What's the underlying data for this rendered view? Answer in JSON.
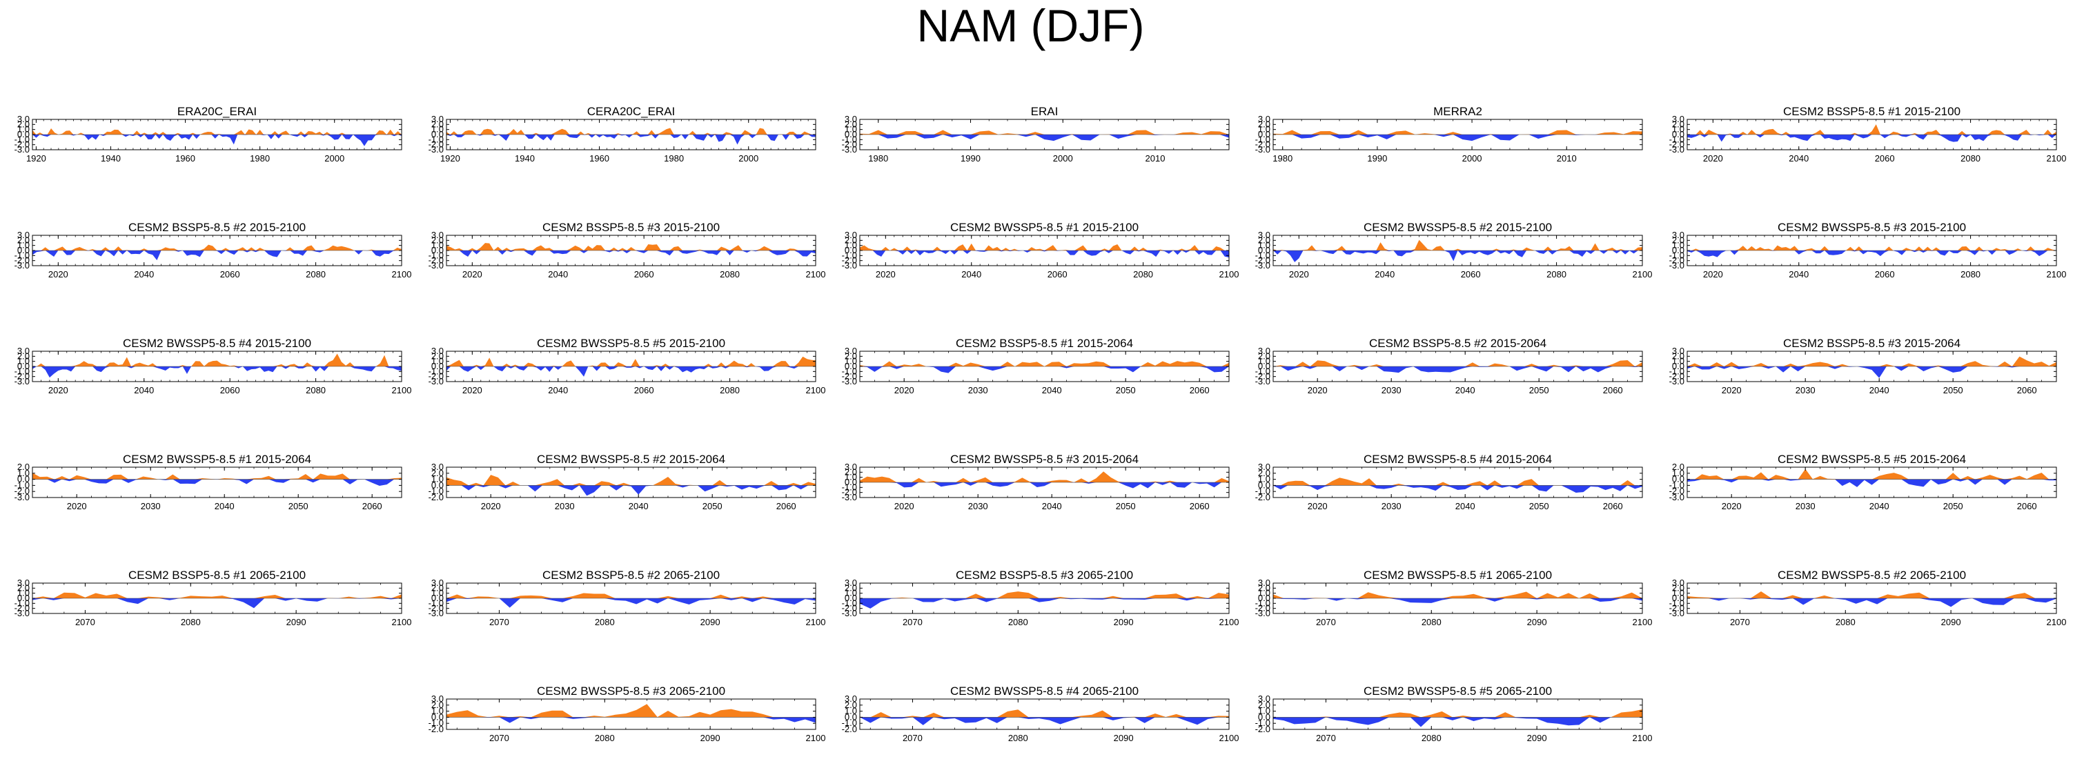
{
  "figure_title": "NAM (DJF)",
  "colors": {
    "positive": "#f7801b",
    "negative": "#2b3ff0",
    "frame": "#000000"
  },
  "chart_data": [
    {
      "type": "area",
      "title": "ERA20C_ERAI",
      "x_range": [
        1919,
        2018
      ],
      "xticks": [
        1920,
        1940,
        1960,
        1980,
        2000
      ],
      "ylim": [
        -3,
        3
      ],
      "yticks": [
        "3.0",
        "2.0",
        "1.0",
        "0.0",
        "-1.0",
        "-2.0",
        "-3.0"
      ],
      "seed": 11
    },
    {
      "type": "area",
      "title": "CERA20C_ERAI",
      "x_range": [
        1919,
        2018
      ],
      "xticks": [
        1920,
        1940,
        1960,
        1980,
        2000
      ],
      "ylim": [
        -3,
        3
      ],
      "yticks": [
        "3.0",
        "2.0",
        "1.0",
        "0.0",
        "-1.0",
        "-2.0",
        "-3.0"
      ],
      "seed": 12
    },
    {
      "type": "area",
      "title": "ERAI",
      "x_range": [
        1978,
        2018
      ],
      "xticks": [
        1980,
        1990,
        2000,
        2010
      ],
      "ylim": [
        -3,
        3
      ],
      "yticks": [
        "3.0",
        "2.0",
        "1.0",
        "0.0",
        "-1.0",
        "-2.0",
        "-3.0"
      ],
      "seed": 13
    },
    {
      "type": "area",
      "title": "MERRA2",
      "x_range": [
        1979,
        2018
      ],
      "xticks": [
        1980,
        1990,
        2000,
        2010
      ],
      "ylim": [
        -3,
        3
      ],
      "yticks": [
        "3.0",
        "2.0",
        "1.0",
        "0.0",
        "-1.0",
        "-2.0",
        "-3.0"
      ],
      "seed": 13
    },
    {
      "type": "area",
      "title": "CESM2 BSSP5-8.5 #1 2015-2100",
      "x_range": [
        2014,
        2100
      ],
      "xticks": [
        2020,
        2040,
        2060,
        2080,
        2100
      ],
      "ylim": [
        -3,
        3
      ],
      "yticks": [
        "3.0",
        "2.0",
        "1.0",
        "0.0",
        "-1.0",
        "-2.0",
        "-3.0"
      ],
      "seed": 21
    },
    {
      "type": "area",
      "title": "CESM2 BSSP5-8.5 #2 2015-2100",
      "x_range": [
        2014,
        2100
      ],
      "xticks": [
        2020,
        2040,
        2060,
        2080,
        2100
      ],
      "ylim": [
        -3,
        3
      ],
      "yticks": [
        "3.0",
        "2.0",
        "1.0",
        "0.0",
        "-1.0",
        "-2.0",
        "-3.0"
      ],
      "seed": 22
    },
    {
      "type": "area",
      "title": "CESM2 BSSP5-8.5 #3 2015-2100",
      "x_range": [
        2014,
        2100
      ],
      "xticks": [
        2020,
        2040,
        2060,
        2080,
        2100
      ],
      "ylim": [
        -3,
        3
      ],
      "yticks": [
        "3.0",
        "2.0",
        "1.0",
        "0.0",
        "-1.0",
        "-2.0",
        "-3.0"
      ],
      "seed": 23
    },
    {
      "type": "area",
      "title": "CESM2 BWSSP5-8.5 #1 2015-2100",
      "x_range": [
        2014,
        2100
      ],
      "xticks": [
        2020,
        2040,
        2060,
        2080,
        2100
      ],
      "ylim": [
        -3,
        3
      ],
      "yticks": [
        "3.0",
        "2.0",
        "1.0",
        "0.0",
        "-1.0",
        "-2.0",
        "-3.0"
      ],
      "seed": 24
    },
    {
      "type": "area",
      "title": "CESM2 BWSSP5-8.5 #2 2015-2100",
      "x_range": [
        2014,
        2100
      ],
      "xticks": [
        2020,
        2040,
        2060,
        2080,
        2100
      ],
      "ylim": [
        -3,
        3
      ],
      "yticks": [
        "3.0",
        "2.0",
        "1.0",
        "0.0",
        "-1.0",
        "-2.0",
        "-3.0"
      ],
      "seed": 25
    },
    {
      "type": "area",
      "title": "CESM2 BWSSP5-8.5 #3 2015-2100",
      "x_range": [
        2014,
        2100
      ],
      "xticks": [
        2020,
        2040,
        2060,
        2080,
        2100
      ],
      "ylim": [
        -3,
        3
      ],
      "yticks": [
        "3.0",
        "2.0",
        "1.0",
        "0.0",
        "-1.0",
        "-2.0",
        "-3.0"
      ],
      "seed": 26
    },
    {
      "type": "area",
      "title": "CESM2 BWSSP5-8.5 #4 2015-2100",
      "x_range": [
        2014,
        2100
      ],
      "xticks": [
        2020,
        2040,
        2060,
        2080,
        2100
      ],
      "ylim": [
        -3,
        3
      ],
      "yticks": [
        "3.0",
        "2.0",
        "1.0",
        "0.0",
        "-1.0",
        "-2.0",
        "-3.0"
      ],
      "seed": 27
    },
    {
      "type": "area",
      "title": "CESM2 BWSSP5-8.5 #5 2015-2100",
      "x_range": [
        2014,
        2100
      ],
      "xticks": [
        2020,
        2040,
        2060,
        2080,
        2100
      ],
      "ylim": [
        -3,
        3
      ],
      "yticks": [
        "3.0",
        "2.0",
        "1.0",
        "0.0",
        "-1.0",
        "-2.0",
        "-3.0"
      ],
      "seed": 28
    },
    {
      "type": "area",
      "title": "CESM2 BSSP5-8.5 #1 2015-2064",
      "x_range": [
        2014,
        2064
      ],
      "xticks": [
        2020,
        2030,
        2040,
        2050,
        2060
      ],
      "ylim": [
        -3,
        3
      ],
      "yticks": [
        "3.0",
        "2.0",
        "1.0",
        "0.0",
        "-1.0",
        "-2.0",
        "-3.0"
      ],
      "seed": 31
    },
    {
      "type": "area",
      "title": "CESM2 BSSP5-8.5 #2 2015-2064",
      "x_range": [
        2014,
        2064
      ],
      "xticks": [
        2020,
        2030,
        2040,
        2050,
        2060
      ],
      "ylim": [
        -3,
        3
      ],
      "yticks": [
        "3.0",
        "2.0",
        "1.0",
        "0.0",
        "-1.0",
        "-2.0",
        "-3.0"
      ],
      "seed": 32
    },
    {
      "type": "area",
      "title": "CESM2 BSSP5-8.5 #3 2015-2064",
      "x_range": [
        2014,
        2064
      ],
      "xticks": [
        2020,
        2030,
        2040,
        2050,
        2060
      ],
      "ylim": [
        -3,
        3
      ],
      "yticks": [
        "3.0",
        "2.0",
        "1.0",
        "0.0",
        "-1.0",
        "-2.0",
        "-3.0"
      ],
      "seed": 33
    },
    {
      "type": "area",
      "title": "CESM2 BWSSP5-8.5 #1 2015-2064",
      "x_range": [
        2014,
        2064
      ],
      "xticks": [
        2020,
        2030,
        2040,
        2050,
        2060
      ],
      "ylim": [
        -3,
        2
      ],
      "yticks": [
        "2.0",
        "1.0",
        "0.0",
        "-1.0",
        "-2.0",
        "-3.0"
      ],
      "seed": 41
    },
    {
      "type": "area",
      "title": "CESM2 BWSSP5-8.5 #2 2015-2064",
      "x_range": [
        2014,
        2064
      ],
      "xticks": [
        2020,
        2030,
        2040,
        2050,
        2060
      ],
      "ylim": [
        -2,
        3
      ],
      "yticks": [
        "3.0",
        "2.0",
        "1.0",
        "0.0",
        "-1.0",
        "-2.0"
      ],
      "seed": 42
    },
    {
      "type": "area",
      "title": "CESM2 BWSSP5-8.5 #3 2015-2064",
      "x_range": [
        2014,
        2064
      ],
      "xticks": [
        2020,
        2030,
        2040,
        2050,
        2060
      ],
      "ylim": [
        -3,
        3
      ],
      "yticks": [
        "3.0",
        "2.0",
        "1.0",
        "0.0",
        "-1.0",
        "-2.0",
        "-3.0"
      ],
      "seed": 43
    },
    {
      "type": "area",
      "title": "CESM2 BWSSP5-8.5 #4 2015-2064",
      "x_range": [
        2014,
        2064
      ],
      "xticks": [
        2020,
        2030,
        2040,
        2050,
        2060
      ],
      "ylim": [
        -2,
        3
      ],
      "yticks": [
        "3.0",
        "2.0",
        "1.0",
        "0.0",
        "-1.0",
        "-2.0"
      ],
      "seed": 44
    },
    {
      "type": "area",
      "title": "CESM2 BWSSP5-8.5 #5 2015-2064",
      "x_range": [
        2014,
        2064
      ],
      "xticks": [
        2020,
        2030,
        2040,
        2050,
        2060
      ],
      "ylim": [
        -3,
        2
      ],
      "yticks": [
        "2.0",
        "1.0",
        "0.0",
        "-1.0",
        "-2.0",
        "-3.0"
      ],
      "seed": 45
    },
    {
      "type": "area",
      "title": "CESM2 BSSP5-8.5 #1 2065-2100",
      "x_range": [
        2065,
        2100
      ],
      "xticks": [
        2070,
        2080,
        2090,
        2100
      ],
      "ylim": [
        -3,
        3
      ],
      "yticks": [
        "3.0",
        "2.0",
        "1.0",
        "0.0",
        "-1.0",
        "-2.0",
        "-3.0"
      ],
      "seed": 51
    },
    {
      "type": "area",
      "title": "CESM2 BSSP5-8.5 #2 2065-2100",
      "x_range": [
        2065,
        2100
      ],
      "xticks": [
        2070,
        2080,
        2090,
        2100
      ],
      "ylim": [
        -3,
        3
      ],
      "yticks": [
        "3.0",
        "2.0",
        "1.0",
        "0.0",
        "-1.0",
        "-2.0",
        "-3.0"
      ],
      "seed": 52
    },
    {
      "type": "area",
      "title": "CESM2 BSSP5-8.5 #3 2065-2100",
      "x_range": [
        2065,
        2100
      ],
      "xticks": [
        2070,
        2080,
        2090,
        2100
      ],
      "ylim": [
        -3,
        3
      ],
      "yticks": [
        "3.0",
        "2.0",
        "1.0",
        "0.0",
        "-1.0",
        "-2.0",
        "-3.0"
      ],
      "seed": 53
    },
    {
      "type": "area",
      "title": "CESM2 BWSSP5-8.5 #1 2065-2100",
      "x_range": [
        2065,
        2100
      ],
      "xticks": [
        2070,
        2080,
        2090,
        2100
      ],
      "ylim": [
        -3,
        3
      ],
      "yticks": [
        "3.0",
        "2.0",
        "1.0",
        "0.0",
        "-1.0",
        "-2.0",
        "-3.0"
      ],
      "seed": 54
    },
    {
      "type": "area",
      "title": "CESM2 BWSSP5-8.5 #2 2065-2100",
      "x_range": [
        2065,
        2100
      ],
      "xticks": [
        2070,
        2080,
        2090,
        2100
      ],
      "ylim": [
        -3,
        3
      ],
      "yticks": [
        "3.0",
        "2.0",
        "1.0",
        "0.0",
        "-1.0",
        "-2.0",
        "-3.0"
      ],
      "seed": 55
    },
    {
      "type": "area",
      "title": "CESM2 BWSSP5-8.5 #3 2065-2100",
      "x_range": [
        2065,
        2100
      ],
      "xticks": [
        2070,
        2080,
        2090,
        2100
      ],
      "ylim": [
        -2,
        3
      ],
      "yticks": [
        "3.0",
        "2.0",
        "1.0",
        "0.0",
        "-1.0",
        "-2.0"
      ],
      "seed": 61
    },
    {
      "type": "area",
      "title": "CESM2 BWSSP5-8.5 #4 2065-2100",
      "x_range": [
        2065,
        2100
      ],
      "xticks": [
        2070,
        2080,
        2090,
        2100
      ],
      "ylim": [
        -2,
        3
      ],
      "yticks": [
        "3.0",
        "2.0",
        "1.0",
        "0.0",
        "-1.0",
        "-2.0"
      ],
      "seed": 62
    },
    {
      "type": "area",
      "title": "CESM2 BWSSP5-8.5 #5 2065-2100",
      "x_range": [
        2065,
        2100
      ],
      "xticks": [
        2070,
        2080,
        2090,
        2100
      ],
      "ylim": [
        -2,
        3
      ],
      "yticks": [
        "3.0",
        "2.0",
        "1.0",
        "0.0",
        "-1.0",
        "-2.0"
      ],
      "seed": 63
    }
  ]
}
